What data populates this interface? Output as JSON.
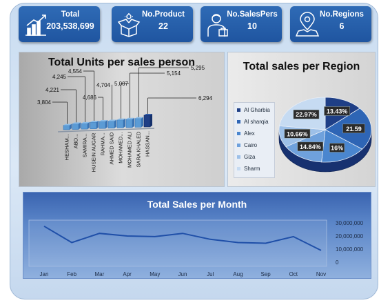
{
  "kpis": [
    {
      "label": "Total",
      "value": "203,538,699",
      "icon": "chart-growth-icon"
    },
    {
      "label": "No.Product",
      "value": "22",
      "icon": "product-box-icon"
    },
    {
      "label": "No.SalesPers",
      "value": "10",
      "icon": "salesperson-icon"
    },
    {
      "label": "No.Regions",
      "value": "6",
      "icon": "map-pin-icon"
    }
  ],
  "colors": {
    "accent": "#2f6bb6",
    "bar_light": "#5b9bd5",
    "bar_dark": "#1f3f86",
    "line": "#1f4fa8"
  },
  "chart_data": [
    {
      "type": "bar",
      "title": "Total Units per sales person",
      "categories": [
        "HESHAM...",
        "ABD...",
        "SAMIRA...",
        "HUSEIN AUGAR",
        "RAHMA...",
        "AHMED SAID",
        "MOHAMED...",
        "MOHAMED ALI",
        "SARA KHALED",
        "HASSAN..."
      ],
      "values": [
        3804,
        4221,
        4245,
        4554,
        4686,
        4704,
        5007,
        5154,
        5295,
        6294
      ],
      "data_labels": [
        "3,804",
        "4,221",
        "4,245",
        "4,554",
        "4,686",
        "4,704",
        "5,007",
        "5,154",
        "5,295",
        "6,294"
      ]
    },
    {
      "type": "pie",
      "title": "Total sales per Region",
      "legend_position": "left",
      "categories": [
        "Al Gharbia",
        "Al sharqia",
        "Alex",
        "Cairo",
        "Giza",
        "Sharm"
      ],
      "values": [
        13.43,
        21.59,
        16,
        14.84,
        10.66,
        22.97
      ],
      "data_labels": [
        "13.43%",
        "21.59",
        "16%",
        "14.84%",
        "10.66%",
        "22.97%"
      ]
    },
    {
      "type": "line",
      "title": "Total Sales per Month",
      "x": [
        "Jan",
        "Feb",
        "Mar",
        "Apr",
        "May",
        "Jun",
        "Jul",
        "Aug",
        "Sep",
        "Oct",
        "Nov"
      ],
      "values": [
        27500000,
        15000000,
        22000000,
        20000000,
        19500000,
        22000000,
        17500000,
        15000000,
        14500000,
        19500000,
        9000000
      ],
      "ylim": [
        0,
        30000000
      ],
      "yticks": [
        "30,000,000",
        "20,000,000",
        "10,000,000",
        "0"
      ],
      "ytick_values": [
        30000000,
        20000000,
        10000000,
        0
      ],
      "y_axis_side": "right",
      "grid": false
    }
  ]
}
